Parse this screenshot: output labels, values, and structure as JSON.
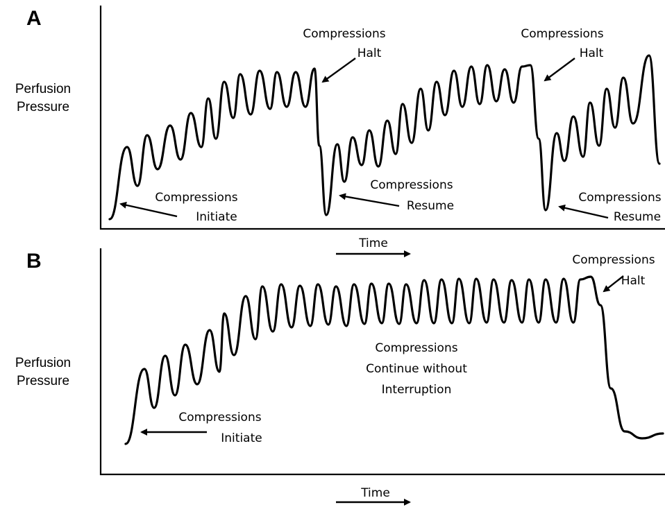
{
  "panels": [
    {
      "letter": "A",
      "ylabel_line1": "Perfusion",
      "ylabel_line2": "Pressure",
      "xlabel": "Time",
      "annotations": {
        "initiate": [
          "Compressions",
          "Initiate"
        ],
        "halt1": [
          "Compressions",
          "Halt"
        ],
        "resume1": [
          "Compressions",
          "Resume"
        ],
        "halt2": [
          "Compressions",
          "Halt"
        ],
        "resume2": [
          "Compressions",
          "Resume"
        ]
      }
    },
    {
      "letter": "B",
      "ylabel_line1": "Perfusion",
      "ylabel_line2": "Pressure",
      "xlabel": "Time",
      "annotations": {
        "initiate": [
          "Compressions",
          "Initiate"
        ],
        "continue": [
          "Compressions",
          "Continue without",
          "Interruption"
        ],
        "halt": [
          "Compressions",
          "Halt"
        ]
      }
    }
  ],
  "colors": {
    "line": "#000000",
    "background": "#ffffff"
  }
}
